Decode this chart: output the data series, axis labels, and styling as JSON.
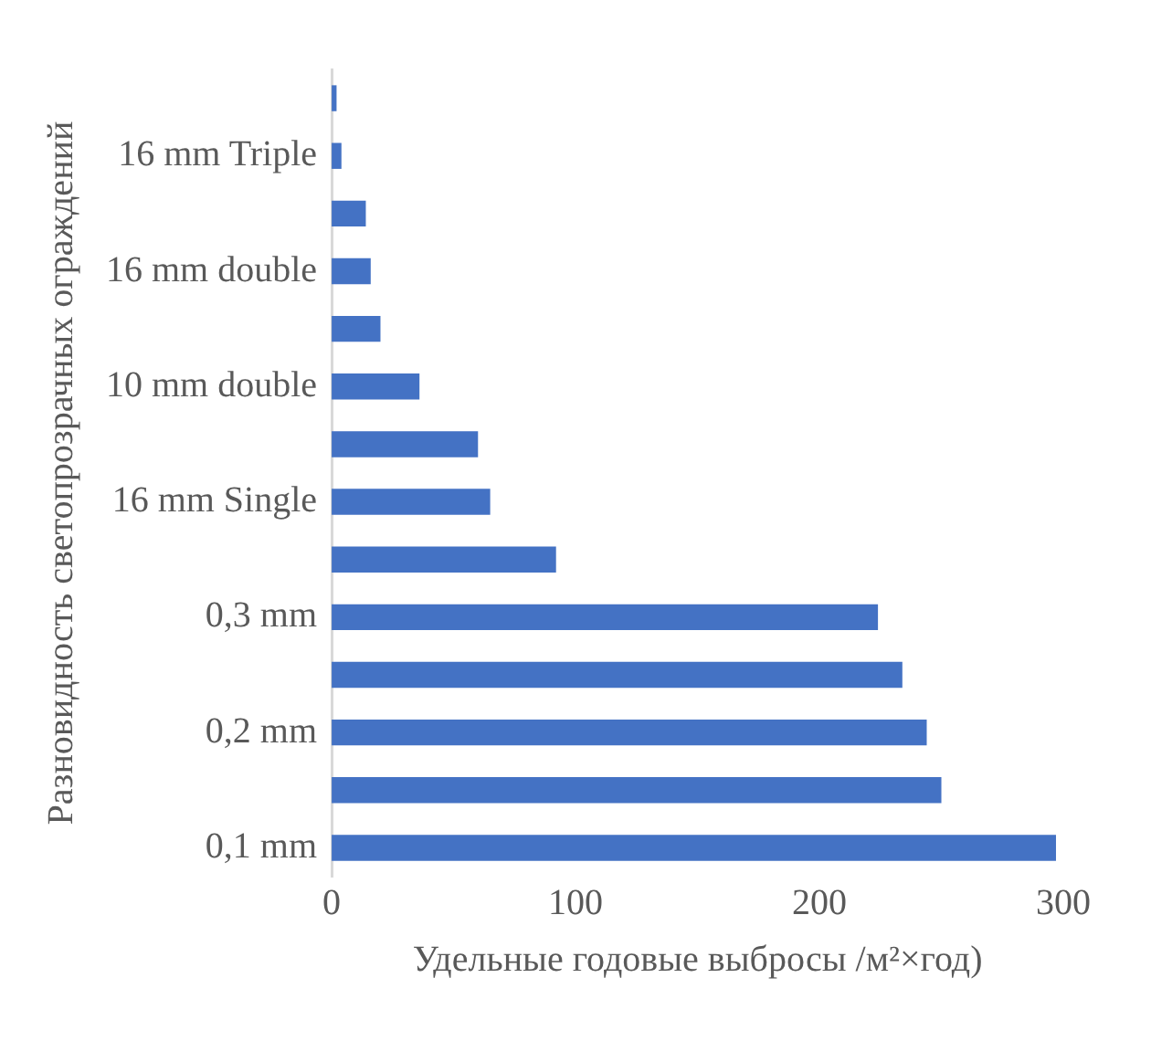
{
  "chart_data": {
    "type": "bar",
    "orientation": "horizontal",
    "xlabel": "Удельные годовые выбросы /м²×год)",
    "ylabel": "Разновидность светопрозрачных ограждений",
    "categories": [
      null,
      "16 mm Triple",
      null,
      "16 mm double",
      null,
      "10 mm double",
      null,
      "16 mm Single",
      null,
      "0,3 mm",
      null,
      "0,2 mm",
      null,
      "0,1 mm"
    ],
    "values": [
      2,
      4,
      14,
      16,
      20,
      36,
      60,
      65,
      92,
      224,
      234,
      244,
      250,
      297
    ],
    "color": "#4472c4",
    "xlim": [
      0,
      300
    ],
    "xticks": [
      0,
      100,
      200,
      300
    ],
    "grid": false,
    "legend": false
  }
}
